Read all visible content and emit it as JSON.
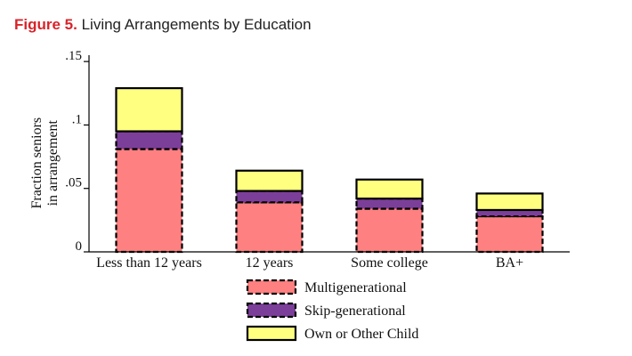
{
  "figure": {
    "number": "Figure 5.",
    "title": "Living Arrangements by Education"
  },
  "chart_data": {
    "type": "bar",
    "stacked": true,
    "categories": [
      "Less than 12 years",
      "12 years",
      "Some college",
      "BA+"
    ],
    "series": [
      {
        "name": "Multigenerational",
        "values": [
          0.081,
          0.039,
          0.034,
          0.028
        ],
        "color": "#ff8080",
        "border": "dashed"
      },
      {
        "name": "Skip-generational",
        "values": [
          0.014,
          0.009,
          0.008,
          0.005
        ],
        "color": "#7b3f99",
        "border": "dashed"
      },
      {
        "name": "Own or Other Child",
        "values": [
          0.034,
          0.016,
          0.015,
          0.013
        ],
        "color": "#ffff80",
        "border": "solid"
      }
    ],
    "ylabel_lines": [
      "Fraction seniors",
      "in arrangement"
    ],
    "yticks": [
      0,
      0.05,
      0.1,
      0.15
    ],
    "ytick_labels": [
      "0",
      ".05",
      ".1",
      ".15"
    ],
    "ylim": [
      0,
      0.155
    ],
    "grid": false,
    "legend_position": "bottom"
  }
}
